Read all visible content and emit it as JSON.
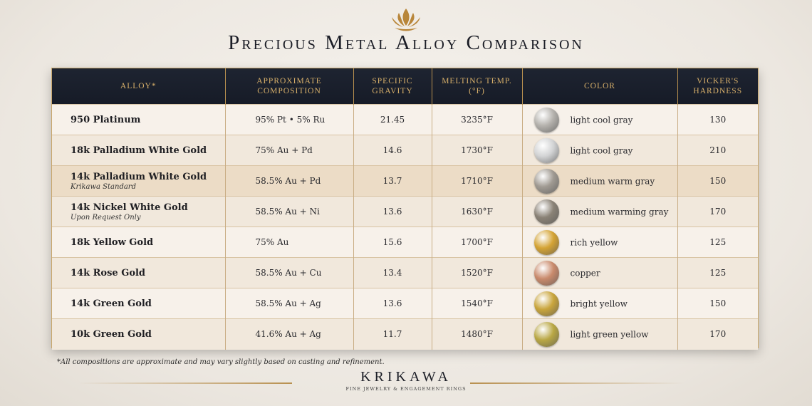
{
  "header": {
    "title": "Precious Metal Alloy Comparison",
    "logo": "lotus-icon"
  },
  "colors": {
    "header_bg": "#1a1f2b",
    "header_text": "#d8b06a",
    "accent": "#b8904f"
  },
  "table": {
    "columns": [
      "ALLOY*",
      "APPROXIMATE\nCOMPOSITION",
      "SPECIFIC\nGRAVITY",
      "MELTING TEMP.\n(°F)",
      "COLOR",
      "VICKER'S\nHARDNESS"
    ],
    "rows": [
      {
        "alloy": "950 Platinum",
        "note": "",
        "composition": "95% Pt  •  5% Ru",
        "gravity": "21.45",
        "melting": "3235°F",
        "color": "light cool gray",
        "swatch": "#b5b2ad",
        "hardness": "130"
      },
      {
        "alloy": "18k Palladium White Gold",
        "note": "",
        "composition": "75% Au  + Pd",
        "gravity": "14.6",
        "melting": "1730°F",
        "color": "light cool gray",
        "swatch": "#d2d3d4",
        "hardness": "210"
      },
      {
        "alloy": "14k Palladium White Gold",
        "note": "Krikawa Standard",
        "composition": "58.5% Au + Pd",
        "gravity": "13.7",
        "melting": "1710°F",
        "color": "medium warm gray",
        "swatch": "#a09a92",
        "hardness": "150",
        "highlight": true
      },
      {
        "alloy": "14k Nickel White Gold",
        "note": "Upon Request Only",
        "composition": "58.5% Au + Ni",
        "gravity": "13.6",
        "melting": "1630°F",
        "color": "medium warming gray",
        "swatch": "#8a8276",
        "hardness": "170"
      },
      {
        "alloy": "18k Yellow Gold",
        "note": "",
        "composition": "75% Au",
        "gravity": "15.6",
        "melting": "1700°F",
        "color": "rich yellow",
        "swatch": "#d4a334",
        "hardness": "125"
      },
      {
        "alloy": "14k Rose Gold",
        "note": "",
        "composition": "58.5% Au + Cu",
        "gravity": "13.4",
        "melting": "1520°F",
        "color": "copper",
        "swatch": "#c98a6c",
        "hardness": "125"
      },
      {
        "alloy": "14k Green Gold",
        "note": "",
        "composition": "58.5% Au + Ag",
        "gravity": "13.6",
        "melting": "1540°F",
        "color": "bright yellow",
        "swatch": "#c9a53c",
        "hardness": "150"
      },
      {
        "alloy": "10k Green Gold",
        "note": "",
        "composition": "41.6% Au + Ag",
        "gravity": "11.7",
        "melting": "1480°F",
        "color": "light green yellow",
        "swatch": "#b9a744",
        "hardness": "170"
      }
    ]
  },
  "footnote": "*All compositions are approximate and may vary slightly based on casting and refinement.",
  "brand": {
    "name": "KRIKAWA",
    "tagline": "FINE JEWELRY & ENGAGEMENT RINGS"
  }
}
